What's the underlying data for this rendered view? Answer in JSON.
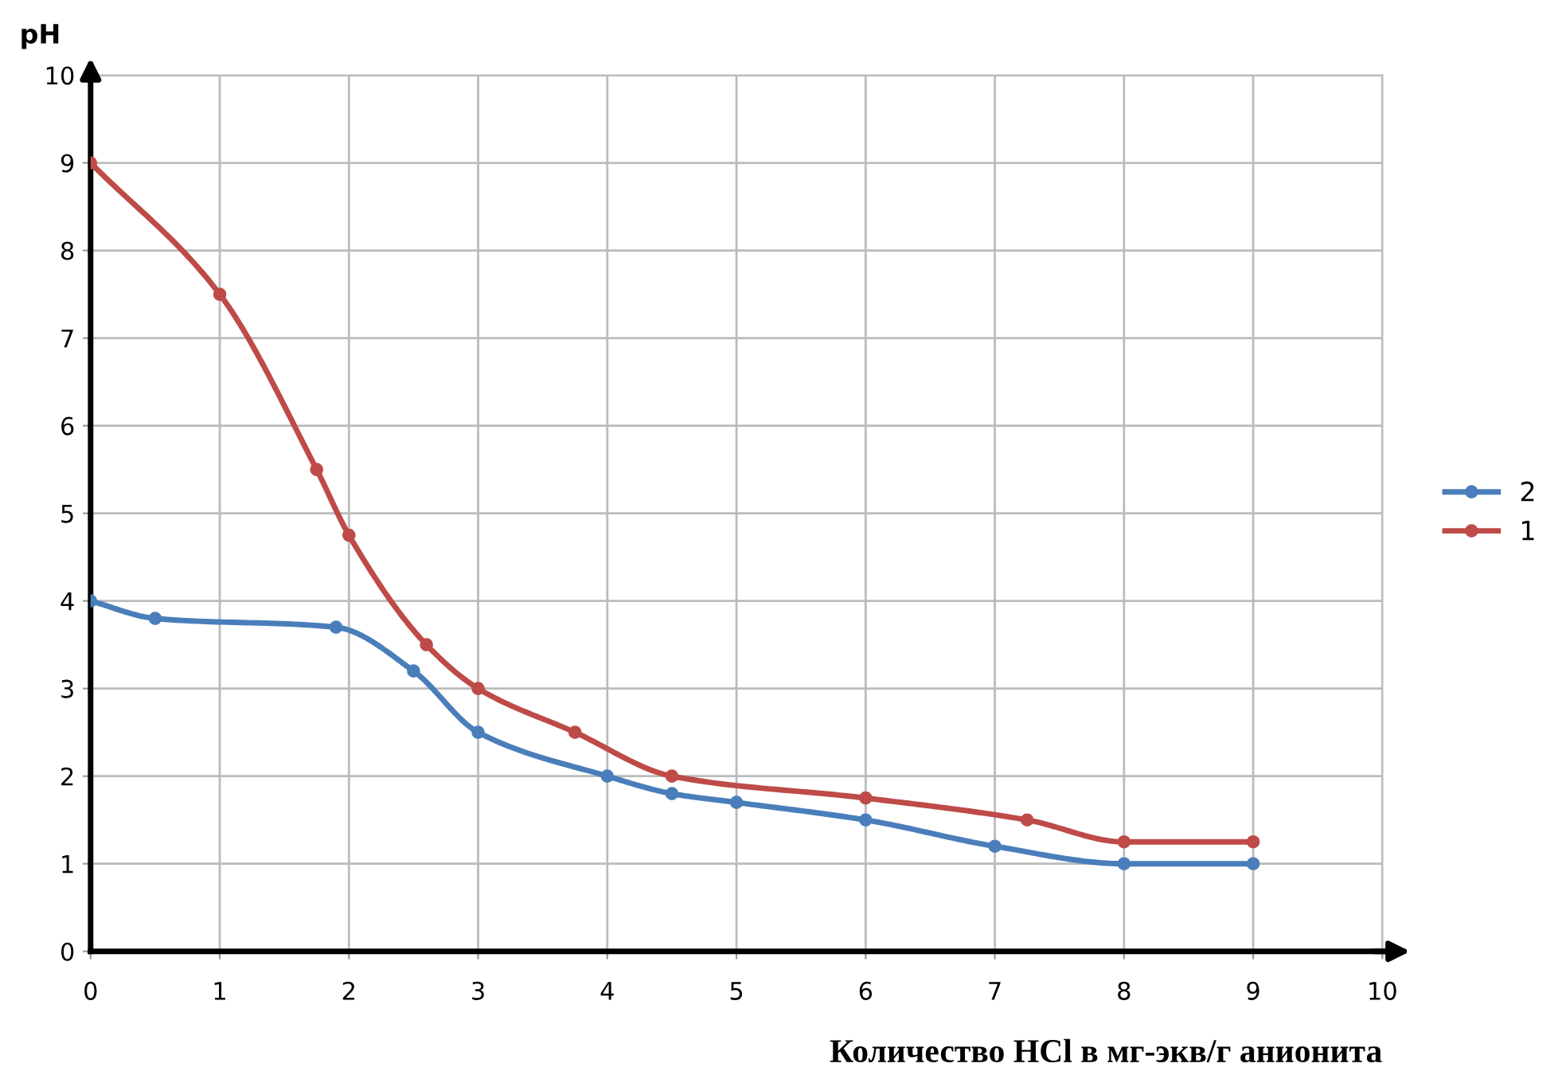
{
  "chart_data": {
    "type": "line",
    "xlabel": "Количество HCl в мг-экв/г анионита",
    "ylabel": "pH",
    "series": [
      {
        "name": "2",
        "color": "#4a7ebb",
        "x": [
          0,
          0.5,
          1.9,
          2.5,
          3,
          4,
          4.5,
          5,
          6,
          7,
          8,
          9
        ],
        "values": [
          4,
          3.8,
          3.7,
          3.2,
          2.5,
          2.0,
          1.8,
          1.7,
          1.5,
          1.2,
          1.0,
          1.0
        ]
      },
      {
        "name": "1",
        "color": "#be4b48",
        "x": [
          0,
          1,
          1.75,
          2,
          2.6,
          3,
          3.75,
          4.5,
          6,
          7.25,
          8,
          9
        ],
        "values": [
          9,
          7.5,
          5.5,
          4.75,
          3.5,
          3,
          2.5,
          2.0,
          1.75,
          1.5,
          1.25,
          1.25
        ]
      }
    ],
    "xlim": [
      0,
      10
    ],
    "xticks": [
      0,
      1,
      2,
      3,
      4,
      5,
      6,
      7,
      8,
      9,
      10
    ],
    "ylim": [
      0,
      10
    ],
    "yticks": [
      0,
      1,
      2,
      3,
      4,
      5,
      6,
      7,
      8,
      9,
      10
    ],
    "grid": true,
    "legend": "right",
    "marker": "circle",
    "line_style": "solid"
  }
}
